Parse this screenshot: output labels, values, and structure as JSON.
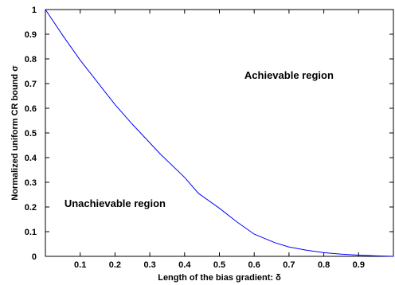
{
  "chart_data": {
    "type": "line",
    "title": "",
    "xlabel": "Length of the bias gradient: δ",
    "ylabel": "Normalized uniform CR bound  σ",
    "xlim": [
      0,
      1
    ],
    "ylim": [
      0,
      1
    ],
    "x_ticks": [
      0.1,
      0.2,
      0.3,
      0.4,
      0.5,
      0.6,
      0.7,
      0.8,
      0.9
    ],
    "x_tick_labels": [
      "0.1",
      "0.2",
      "0.3",
      "0.4",
      "0.5",
      "0.6",
      "0.7",
      "0.8",
      "0.9"
    ],
    "y_ticks": [
      0,
      0.1,
      0.2,
      0.3,
      0.4,
      0.5,
      0.6,
      0.7,
      0.8,
      0.9,
      1
    ],
    "y_tick_labels": [
      "0",
      "0.1",
      "0.2",
      "0.3",
      "0.4",
      "0.5",
      "0.6",
      "0.7",
      "0.8",
      "0.9",
      "1"
    ],
    "grid": false,
    "series": [
      {
        "color": "#0000ff",
        "x": [
          0,
          0.05,
          0.1,
          0.15,
          0.2,
          0.25,
          0.3,
          0.33,
          0.4,
          0.44,
          0.5,
          0.55,
          0.6,
          0.66,
          0.7,
          0.75,
          0.8,
          0.85,
          0.9,
          0.95,
          1
        ],
        "y": [
          1,
          0.895,
          0.795,
          0.705,
          0.615,
          0.535,
          0.46,
          0.415,
          0.32,
          0.255,
          0.195,
          0.14,
          0.09,
          0.055,
          0.038,
          0.025,
          0.015,
          0.009,
          0.005,
          0.002,
          0
        ]
      }
    ],
    "annotations": [
      {
        "text": "Achievable region",
        "x": 0.7,
        "y": 0.72
      },
      {
        "text": "Unachievable region",
        "x": 0.2,
        "y": 0.2
      }
    ]
  }
}
